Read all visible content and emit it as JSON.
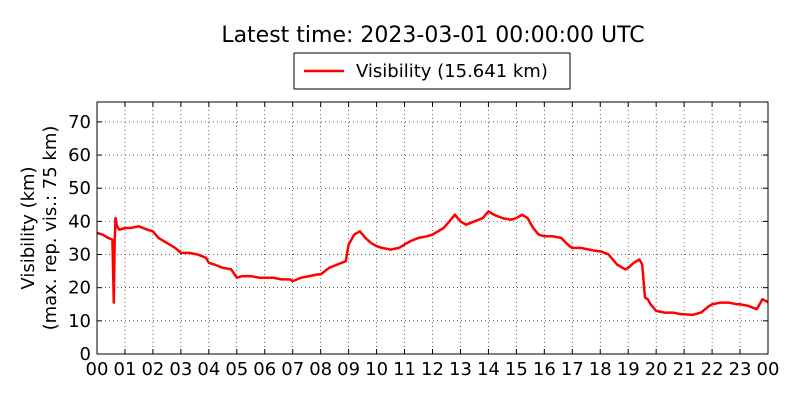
{
  "chart_data": {
    "type": "line",
    "title": "Latest time: 2023-03-01 00:00:00 UTC",
    "ylabel_line1": "Visibility (km)",
    "ylabel_line2": "(max. rep. vis.: 75 km)",
    "xlabel": "",
    "xlim": [
      0,
      24
    ],
    "ylim": [
      0,
      75
    ],
    "x_ticks": [
      0,
      1,
      2,
      3,
      4,
      5,
      6,
      7,
      8,
      9,
      10,
      11,
      12,
      13,
      14,
      15,
      16,
      17,
      18,
      19,
      20,
      21,
      22,
      23,
      24
    ],
    "x_tick_labels": [
      "00",
      "01",
      "02",
      "03",
      "04",
      "05",
      "06",
      "07",
      "08",
      "09",
      "10",
      "11",
      "12",
      "13",
      "14",
      "15",
      "16",
      "17",
      "18",
      "19",
      "20",
      "21",
      "22",
      "23",
      "00"
    ],
    "y_ticks": [
      0,
      10,
      20,
      30,
      40,
      50,
      60,
      70
    ],
    "y_tick_labels": [
      "0",
      "10",
      "20",
      "30",
      "40",
      "50",
      "60",
      "70"
    ],
    "grid": true,
    "legend_position": "top-center",
    "series": [
      {
        "name": "Visibility (15.641 km)",
        "color": "#ff0000",
        "x": [
          0.0,
          0.2,
          0.4,
          0.55,
          0.6,
          0.63,
          0.66,
          0.7,
          0.75,
          0.8,
          1.0,
          1.2,
          1.5,
          1.8,
          2.0,
          2.2,
          2.5,
          2.8,
          3.0,
          3.3,
          3.6,
          3.9,
          4.0,
          4.2,
          4.5,
          4.8,
          5.0,
          5.2,
          5.5,
          5.8,
          6.0,
          6.3,
          6.6,
          6.9,
          7.0,
          7.3,
          7.6,
          7.9,
          8.0,
          8.3,
          8.6,
          8.9,
          9.0,
          9.2,
          9.4,
          9.6,
          9.8,
          10.0,
          10.2,
          10.5,
          10.8,
          11.0,
          11.2,
          11.5,
          11.8,
          12.0,
          12.2,
          12.4,
          12.6,
          12.8,
          13.0,
          13.2,
          13.5,
          13.8,
          14.0,
          14.2,
          14.5,
          14.8,
          15.0,
          15.2,
          15.4,
          15.6,
          15.8,
          16.0,
          16.3,
          16.6,
          16.9,
          17.0,
          17.3,
          17.6,
          17.9,
          18.0,
          18.3,
          18.6,
          18.9,
          19.0,
          19.2,
          19.4,
          19.5,
          19.6,
          19.7,
          19.8,
          20.0,
          20.3,
          20.6,
          20.9,
          21.0,
          21.3,
          21.6,
          21.9,
          22.0,
          22.3,
          22.6,
          22.9,
          23.0,
          23.3,
          23.6,
          23.8,
          24.0
        ],
        "y": [
          36.5,
          36,
          35,
          34.5,
          15.5,
          33,
          41,
          39,
          38,
          37.5,
          38,
          38,
          38.5,
          37.5,
          37,
          35,
          33.5,
          32,
          30.5,
          30.5,
          30,
          29,
          27.5,
          27,
          26,
          25.5,
          23,
          23.5,
          23.5,
          23,
          23,
          23,
          22.5,
          22.5,
          22,
          23,
          23.5,
          24,
          24,
          26,
          27,
          28,
          33,
          36,
          37,
          35,
          33.5,
          32.5,
          32,
          31.5,
          32,
          33,
          34,
          35,
          35.5,
          36,
          37,
          38,
          40,
          42,
          40,
          39,
          40,
          41,
          43,
          42,
          41,
          40.5,
          41,
          42,
          41,
          38,
          36,
          35.5,
          35.5,
          35,
          32.5,
          32,
          32,
          31.5,
          31,
          31,
          30,
          27,
          25.5,
          26,
          27.5,
          28.5,
          27,
          17,
          16.5,
          15,
          13,
          12.5,
          12.5,
          12,
          12,
          11.8,
          12.5,
          14.5,
          15,
          15.5,
          15.5,
          15,
          15,
          14.5,
          13.5,
          16.5,
          15.641
        ]
      }
    ]
  }
}
